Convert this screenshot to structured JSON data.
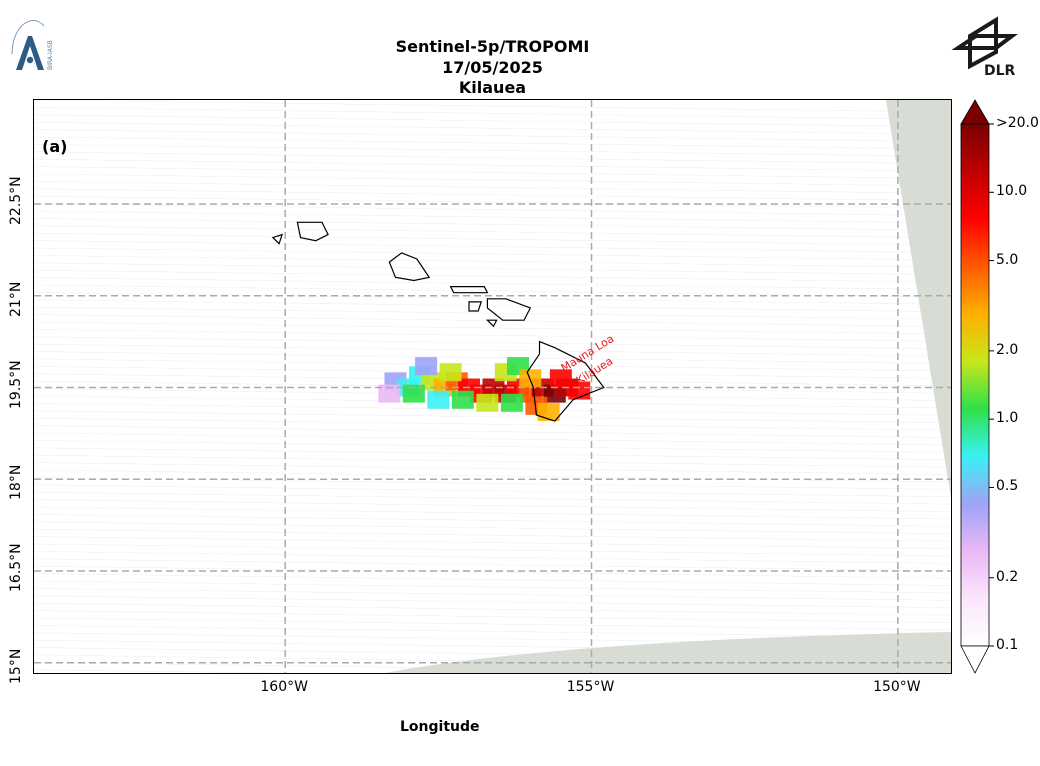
{
  "header": {
    "title_line1": "Sentinel-5p/TROPOMI",
    "title_line2": "17/05/2025",
    "title_line3": "Kilauea"
  },
  "logos": {
    "left": "BIRA-IASB",
    "right": "DLR"
  },
  "map": {
    "panel_label": "(a)",
    "lon_range": [
      -164.1,
      -149.1
    ],
    "lat_range": [
      14.8,
      24.2
    ],
    "gridlines_lon": [
      -160,
      -155,
      -150
    ],
    "gridlines_lat": [
      15,
      16.5,
      18,
      19.5,
      21,
      22.5
    ],
    "x_tick_labels": [
      "160°W",
      "155°W",
      "150°W"
    ],
    "y_tick_labels": [
      "15°N",
      "16.5°N",
      "18°N",
      "19.5°N",
      "21°N",
      "22.5°N"
    ],
    "xlabel": "Longitude",
    "volcano_labels": [
      "Mauna Loa",
      "Kilauea"
    ],
    "volcano_label_color": "#e8141e",
    "no_data_color": "#d7dcd5"
  },
  "colorbar": {
    "scale": "log",
    "range": [
      0.1,
      20.0
    ],
    "tick_labels": [
      "0.1",
      "0.2",
      "0.5",
      "1.0",
      "2.0",
      "5.0",
      "10.0",
      ">20.0"
    ],
    "tick_values": [
      0.1,
      0.2,
      0.5,
      1.0,
      2.0,
      5.0,
      10.0,
      20.0
    ],
    "colors": [
      "#ffffff",
      "#fbe6fb",
      "#eab8f5",
      "#9fa3f7",
      "#39f1f3",
      "#2fe04a",
      "#c8e61a",
      "#ffb000",
      "#ff5a00",
      "#ff0000",
      "#c00000",
      "#7a0000"
    ]
  }
}
